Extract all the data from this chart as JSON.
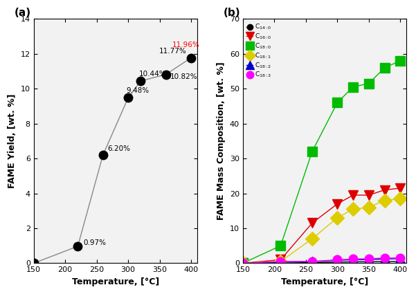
{
  "panel_a": {
    "title": "(a)",
    "temperatures": [
      150,
      220,
      260,
      300,
      320,
      360,
      400
    ],
    "fame_yield": [
      0.0,
      0.97,
      6.2,
      9.48,
      10.44,
      10.82,
      11.77
    ],
    "labels": [
      "",
      "0.97%",
      "6.20%",
      "9.48%",
      "10.44%",
      "10.82%",
      "11.77%"
    ],
    "special_label": "11.96%",
    "special_x": 370,
    "special_y": 12.3,
    "xlabel": "Temperature, [°C]",
    "ylabel": "FAME Yield, [wt. %]",
    "xlim": [
      150,
      410
    ],
    "ylim": [
      0,
      14
    ],
    "yticks": [
      0,
      2,
      4,
      6,
      8,
      10,
      12,
      14
    ],
    "xticks": [
      150,
      200,
      250,
      300,
      350,
      400
    ],
    "line_color": "#888888",
    "marker_color": "#000000"
  },
  "panel_b": {
    "title": "(b)",
    "temperatures": [
      150,
      210,
      260,
      300,
      325,
      350,
      375,
      400
    ],
    "series": {
      "C14:0": {
        "values": [
          0.0,
          0.0,
          0.2,
          0.3,
          0.4,
          0.4,
          0.45,
          0.5
        ],
        "color": "#000000",
        "marker": "o",
        "markersize": 7,
        "label": "C$_{14:0}$"
      },
      "C16:0": {
        "values": [
          0.0,
          1.0,
          11.5,
          17.0,
          19.5,
          19.5,
          21.0,
          21.5
        ],
        "color": "#dd0000",
        "marker": "v",
        "markersize": 10,
        "label": "C$_{16:0}$"
      },
      "C18:0": {
        "values": [
          0.0,
          5.0,
          32.0,
          46.0,
          50.5,
          51.5,
          56.0,
          58.0
        ],
        "color": "#00bb00",
        "marker": "s",
        "markersize": 10,
        "label": "C$_{18:0}$"
      },
      "C18:1": {
        "values": [
          0.0,
          0.5,
          7.0,
          13.0,
          15.5,
          16.0,
          18.0,
          18.5
        ],
        "color": "#ddcc00",
        "marker": "D",
        "markersize": 10,
        "label": "C$_{18:1}$"
      },
      "C18:2": {
        "values": [
          0.0,
          0.3,
          0.5,
          0.8,
          1.0,
          1.0,
          1.2,
          1.3
        ],
        "color": "#0000cc",
        "marker": "^",
        "markersize": 10,
        "label": "C$_{18:2}$"
      },
      "C18:3": {
        "values": [
          0.0,
          0.5,
          0.5,
          1.0,
          1.2,
          1.3,
          1.5,
          1.5
        ],
        "color": "#ff00ff",
        "marker": "o",
        "markersize": 9,
        "label": "C$_{18:3}$"
      }
    },
    "xlabel": "Temperature, [°C]",
    "ylabel": "FAME Mass Composition, [wt. %]",
    "xlim": [
      150,
      410
    ],
    "ylim": [
      0,
      70
    ],
    "yticks": [
      0,
      10,
      20,
      30,
      40,
      50,
      60,
      70
    ],
    "xticks": [
      150,
      200,
      250,
      300,
      350,
      400
    ]
  }
}
